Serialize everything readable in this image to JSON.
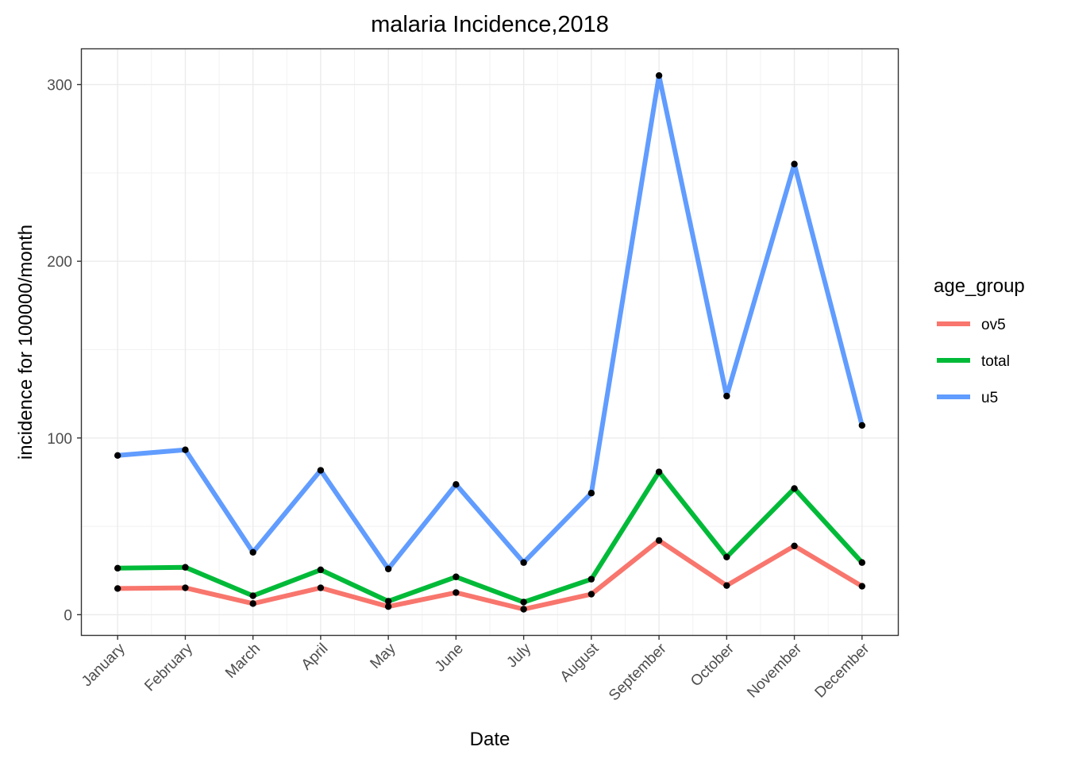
{
  "chart_data": {
    "type": "line",
    "title": "malaria Incidence,2018",
    "xlabel": "Date",
    "ylabel": "incidence for 100000/month",
    "categories": [
      "January",
      "February",
      "March",
      "April",
      "May",
      "June",
      "July",
      "August",
      "September",
      "October",
      "November",
      "December"
    ],
    "ylim": [
      -11.5,
      320
    ],
    "yticks": [
      0,
      100,
      200,
      300
    ],
    "grid": true,
    "legend": {
      "title": "age_group",
      "position": "right"
    },
    "series": [
      {
        "name": "ov5",
        "color": "#F8766D",
        "values": [
          14.8,
          15.2,
          6.3,
          15.2,
          4.6,
          12.5,
          3.1,
          11.6,
          42.0,
          16.5,
          38.9,
          16.1
        ]
      },
      {
        "name": "total",
        "color": "#00BA38",
        "values": [
          26.3,
          26.8,
          10.7,
          25.4,
          7.6,
          21.4,
          7.1,
          20.1,
          80.8,
          32.6,
          71.4,
          29.5
        ]
      },
      {
        "name": "u5",
        "color": "#619CFF",
        "values": [
          90.1,
          93.3,
          35.3,
          81.7,
          25.9,
          73.7,
          29.5,
          68.8,
          305.1,
          123.7,
          255.0,
          107.1
        ]
      }
    ]
  }
}
